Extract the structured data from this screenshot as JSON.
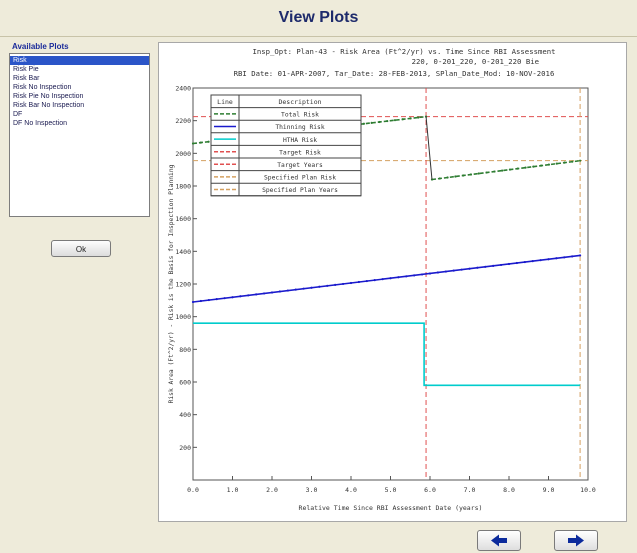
{
  "window": {
    "title": "View Plots"
  },
  "plots_panel": {
    "label": "Available Plots",
    "items": [
      "Risk",
      "Risk Pie",
      "Risk Bar",
      "Risk No Inspection",
      "Risk Pie No Inspection",
      "Risk Bar No Inspection",
      "DF",
      "DF No Inspection"
    ],
    "selected_index": 0
  },
  "buttons": {
    "ok_label": "Ok"
  },
  "nav": {
    "prev_icon": "left-arrow-icon",
    "next_icon": "right-arrow-icon"
  },
  "colors": {
    "window_bg": "#eeebda",
    "title_color": "#1d2a6b",
    "selection_bg": "#2b55c8",
    "nav_arrow": "#0b2a9c"
  },
  "chart_data": {
    "type": "line",
    "title_lines": [
      "Insp_Opt: Plan-43 - Risk Area (Ft^2/yr) vs. Time Since RBI Assessment",
      "220, 0-201_220, 0-201_220 Bie",
      "RBI Date: 01-APR-2007, Tar_Date: 28-FEB-2013, SPlan_Date_Mod: 10-NOV-2016"
    ],
    "xlabel": "Relative Time Since RBI Assessment Date (years)",
    "ylabel": "Risk Area (Ft^2/yr) - Risk is the Basis for Inspection Planning",
    "xlim": [
      0,
      10
    ],
    "ylim": [
      0,
      2400
    ],
    "xticks": [
      "0.0",
      "1.0",
      "2.0",
      "3.0",
      "4.0",
      "5.0",
      "6.0",
      "7.0",
      "8.0",
      "9.0",
      "10.0"
    ],
    "yticks": [
      "200",
      "400",
      "600",
      "800",
      "1000",
      "1200",
      "1400",
      "1600",
      "1800",
      "2000",
      "2200",
      "2400"
    ],
    "grid": false,
    "legend": {
      "placement": "top-left",
      "headers": [
        "Line",
        "Description"
      ],
      "entries": [
        {
          "name": "Total Risk",
          "color": "#2e7d32",
          "dash": "dashed"
        },
        {
          "name": "Thinning Risk",
          "color": "#1a1acc",
          "dash": "solid"
        },
        {
          "name": "HTHA Risk",
          "color": "#00cccc",
          "dash": "solid"
        },
        {
          "name": "Target Risk",
          "color": "#e05050",
          "dash": "dashed"
        },
        {
          "name": "Target Years",
          "color": "#e05050",
          "dash": "dashed"
        },
        {
          "name": "Specified Plan Risk",
          "color": "#d4a060",
          "dash": "dashed"
        },
        {
          "name": "Specified Plan Years",
          "color": "#d4a060",
          "dash": "dashed"
        }
      ]
    },
    "series": [
      {
        "name": "Total Risk",
        "segments": [
          [
            [
              0,
              2060
            ],
            [
              5.9,
              2225
            ]
          ],
          [
            [
              6.05,
              1840
            ],
            [
              9.8,
              1955
            ]
          ]
        ]
      },
      {
        "name": "Thinning Risk",
        "segments": [
          [
            [
              0,
              1090
            ],
            [
              9.8,
              1375
            ]
          ]
        ]
      },
      {
        "name": "HTHA Risk",
        "segments": [
          [
            [
              0,
              960
            ],
            [
              5.85,
              960
            ],
            [
              5.85,
              580
            ],
            [
              9.8,
              580
            ]
          ]
        ]
      }
    ],
    "target_risk": 2225,
    "target_years": 5.9,
    "specified_plan_risk": 1955,
    "specified_plan_years": 9.8
  }
}
